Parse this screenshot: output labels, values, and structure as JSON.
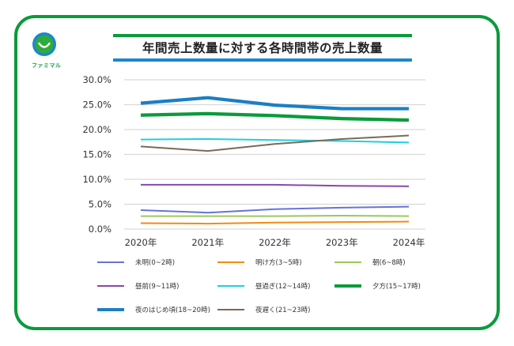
{
  "logo": {
    "icon": "smile-circle-icon",
    "text": "ファミマル",
    "ring_color": "#1b87d0",
    "face_color": "#2eab3a"
  },
  "header": {
    "title": "年間売上数量に対する各時間帯の売上数量",
    "accent_top": "#0a9b3b",
    "accent_bottom": "#1b87d0"
  },
  "chart_data": {
    "type": "line",
    "title": "年間売上数量に対する各時間帯の売上数量",
    "xlabel": "",
    "ylabel": "",
    "categories": [
      "2020年",
      "2021年",
      "2022年",
      "2023年",
      "2024年"
    ],
    "ylim": [
      0,
      30
    ],
    "yticks": [
      0,
      5,
      10,
      15,
      20,
      25,
      30
    ],
    "ytick_labels": [
      "0.0%",
      "5.0%",
      "10.0%",
      "15.0%",
      "20.0%",
      "25.0%",
      "30.0%"
    ],
    "grid": true,
    "legend_position": "bottom",
    "series": [
      {
        "name": "未明(0~2時)",
        "color": "#6673d9",
        "weight": "thin",
        "values": [
          3.8,
          3.3,
          4.0,
          4.3,
          4.5
        ]
      },
      {
        "name": "明け方(3~5時)",
        "color": "#f28c0f",
        "weight": "thin",
        "values": [
          1.2,
          1.1,
          1.3,
          1.4,
          1.5
        ]
      },
      {
        "name": "朝(6~8時)",
        "color": "#9bc95a",
        "weight": "thin",
        "values": [
          2.6,
          2.6,
          2.6,
          2.7,
          2.6
        ]
      },
      {
        "name": "昼前(9~11時)",
        "color": "#8b47a8",
        "weight": "thin",
        "values": [
          8.9,
          8.9,
          8.9,
          8.7,
          8.6
        ]
      },
      {
        "name": "昼過ぎ(12~14時)",
        "color": "#1fcfe0",
        "weight": "thin",
        "values": [
          18.0,
          18.1,
          17.9,
          17.7,
          17.4
        ]
      },
      {
        "name": "夕方(15~17時)",
        "color": "#0a9b3b",
        "weight": "thick",
        "values": [
          22.9,
          23.2,
          22.8,
          22.2,
          21.9
        ]
      },
      {
        "name": "夜のはじめ頃(18~20時)",
        "color": "#1b7fc4",
        "weight": "thick",
        "values": [
          25.3,
          26.4,
          24.9,
          24.2,
          24.2
        ]
      },
      {
        "name": "夜遅く(21~23時)",
        "color": "#7a6a5a",
        "weight": "thin",
        "values": [
          16.6,
          15.7,
          17.1,
          18.1,
          18.8
        ]
      }
    ]
  }
}
